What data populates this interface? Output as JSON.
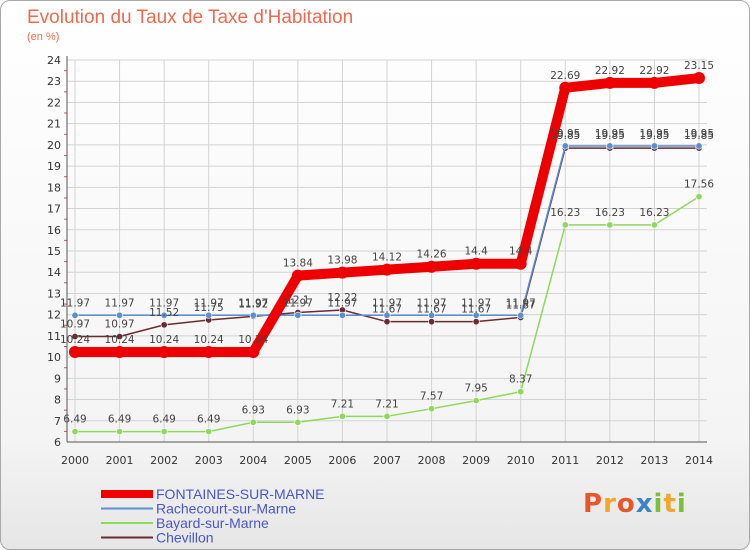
{
  "title": "Evolution du Taux de Taxe d'Habitation",
  "subtitle": "(en %)",
  "logo": {
    "text": "Proxiti",
    "colors": [
      "#e8562a",
      "#f2a72c",
      "#e8562a",
      "#3a84c8",
      "#7bbf3a",
      "#f2a72c",
      "#7bbf3a"
    ]
  },
  "chart_data": {
    "type": "line",
    "x": [
      2000,
      2001,
      2002,
      2003,
      2004,
      2005,
      2006,
      2007,
      2008,
      2009,
      2010,
      2011,
      2012,
      2013,
      2014
    ],
    "ylim": [
      6,
      24
    ],
    "yticks": [
      6,
      7,
      8,
      9,
      10,
      11,
      12,
      13,
      14,
      15,
      16,
      17,
      18,
      19,
      20,
      21,
      22,
      23,
      24
    ],
    "grid": true,
    "legend_position": "bottom-left",
    "series": [
      {
        "name": "FONTAINES-SUR-MARNE",
        "color": "#ee0000",
        "labels": [
          "10.24",
          "10.24",
          "10.24",
          "10.24",
          "10.24",
          "13.84",
          "13.98",
          "14.12",
          "14.26",
          "14.4",
          "14.4",
          "22.69",
          "22.92",
          "22.92",
          "23.15"
        ],
        "values": [
          10.24,
          10.24,
          10.24,
          10.24,
          10.24,
          13.84,
          13.98,
          14.12,
          14.26,
          14.4,
          14.4,
          22.69,
          22.92,
          22.92,
          23.15
        ]
      },
      {
        "name": "Rachecourt-sur-Marne",
        "color": "#5b8fd0",
        "labels": [
          "11.97",
          "11.97",
          "11.97",
          "11.97",
          "11.97",
          "11.97",
          "11.97",
          "11.97",
          "11.97",
          "11.97",
          "11.97",
          "19.95",
          "19.95",
          "19.95",
          "19.95"
        ],
        "values": [
          11.97,
          11.97,
          11.97,
          11.97,
          11.97,
          11.97,
          11.97,
          11.97,
          11.97,
          11.97,
          11.97,
          19.95,
          19.95,
          19.95,
          19.95
        ]
      },
      {
        "name": "Bayard-sur-Marne",
        "color": "#8ed85b",
        "labels": [
          "6.49",
          "6.49",
          "6.49",
          "6.49",
          "6.93",
          "6.93",
          "7.21",
          "7.21",
          "7.57",
          "7.95",
          "8.37",
          "16.23",
          "16.23",
          "16.23",
          "17.56"
        ],
        "values": [
          6.49,
          6.49,
          6.49,
          6.49,
          6.93,
          6.93,
          7.21,
          7.21,
          7.57,
          7.95,
          8.37,
          16.23,
          16.23,
          16.23,
          17.56
        ]
      },
      {
        "name": "Chevillon",
        "color": "#6b2b32",
        "labels": [
          "10.97",
          "10.97",
          "11.52",
          "11.75",
          "11.92",
          "12.1",
          "12.22",
          "11.67",
          "11.67",
          "11.67",
          "11.87",
          "19.85",
          "19.85",
          "19.85",
          "19.85"
        ],
        "values": [
          10.97,
          10.97,
          11.52,
          11.75,
          11.92,
          12.1,
          12.22,
          11.67,
          11.67,
          11.67,
          11.87,
          19.85,
          19.85,
          19.85,
          19.85
        ]
      }
    ]
  }
}
